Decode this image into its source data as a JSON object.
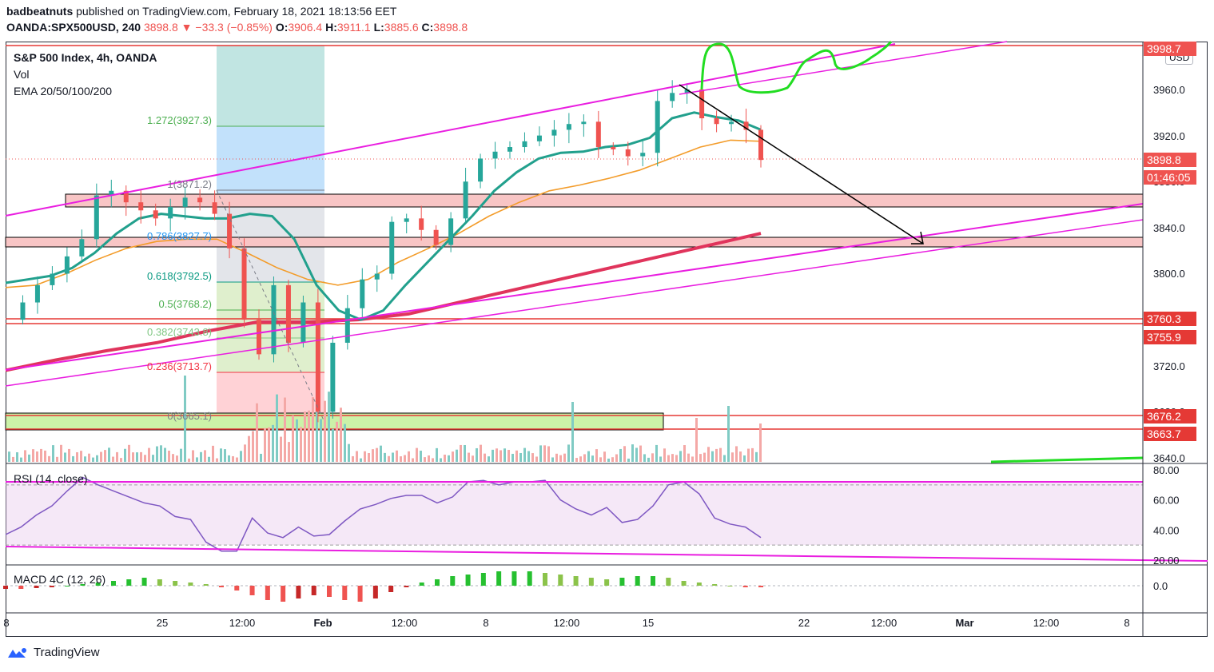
{
  "header": {
    "author": "badbeatnuts",
    "published_text": "published on TradingView.com, February 18, 2021 18:13:56 EET",
    "symbol": "OANDA:SPX500USD, 240",
    "last": "3898.8",
    "change": "−33.3 (−0.85%)",
    "open_label": "O:",
    "open": "3906.4",
    "high_label": "H:",
    "high": "3911.1",
    "low_label": "L:",
    "low": "3885.6",
    "close_label": "C:",
    "close": "3898.8"
  },
  "legend": {
    "title": "S&P 500 Index, 4h, OANDA",
    "vol": "Vol",
    "ema": "EMA 20/50/100/200",
    "rsi": "RSI (14, close)",
    "macd": "MACD 4C (12, 26)"
  },
  "currency": "USD",
  "price_labels": {
    "top": "3998.7",
    "last": "3898.8",
    "countdown": "01:46:05",
    "r1": "3760.3",
    "r2": "3755.9",
    "s1": "3676.2",
    "s2": "3663.7"
  },
  "fib_labels": [
    {
      "text": "1.272(3927.3)",
      "color": "#4caf50"
    },
    {
      "text": "1(3871.2)",
      "color": "#787b86"
    },
    {
      "text": "0.786(3827.7)",
      "color": "#2196f3"
    },
    {
      "text": "0.618(3792.5)",
      "color": "#089981"
    },
    {
      "text": "0.5(3768.2)",
      "color": "#4caf50"
    },
    {
      "text": "0.382(3743.8)",
      "color": "#81c784"
    },
    {
      "text": "0.236(3713.7)",
      "color": "#f23645"
    },
    {
      "text": "0(3665.1)",
      "color": "#787b86"
    }
  ],
  "footer": {
    "brand": "TradingView"
  },
  "colors": {
    "up": "#26a69a",
    "down": "#ef5350",
    "ema20": "#22a08d",
    "ema50": "#f39c2a",
    "ema200": "#e0345c",
    "channel": "#e91ee0",
    "arrow": "#000000",
    "green_sketch": "#22dd22"
  },
  "chart_data": {
    "type": "line",
    "title": "S&P 500 Index, 4h, OANDA",
    "x_ticks": [
      "8",
      "25",
      "12:00",
      "Feb",
      "12:00",
      "8",
      "12:00",
      "15",
      "22",
      "12:00",
      "Mar",
      "12:00",
      "8"
    ],
    "y_ticks": [
      3960.0,
      3920.0,
      3880.0,
      3840.0,
      3800.0,
      3720.0,
      3680.0,
      3640.0
    ],
    "ylim": [
      3632,
      3998
    ],
    "series": [
      {
        "name": "",
        "values": [
          3760,
          3775,
          3790,
          3800,
          3815,
          3830,
          3868,
          3872,
          3862,
          3855,
          3848,
          3858,
          3866,
          3862,
          3852,
          3822,
          3760,
          3730,
          3790,
          3740,
          3775,
          3680,
          3740,
          3770,
          3795,
          3800,
          3845,
          3848,
          3838,
          3825,
          3848,
          3880,
          3900,
          3906,
          3910,
          3915,
          3920,
          3925,
          3930,
          3932,
          3910,
          3908,
          3902,
          3905,
          3950,
          3957,
          3960,
          3935,
          3930,
          3932,
          3925,
          3898.8
        ]
      },
      {
        "name": "",
        "values": [
          3792,
          3795,
          3798,
          3805,
          3818,
          3835,
          3848,
          3852,
          3850,
          3848,
          3848,
          3852,
          3850,
          3830,
          3790,
          3768,
          3760,
          3768,
          3790,
          3810,
          3830,
          3850,
          3872,
          3888,
          3900,
          3905,
          3906,
          3910,
          3912,
          3918,
          3935,
          3940,
          3936,
          3933,
          3925
        ]
      },
      {
        "name": "",
        "values": [
          3788,
          3790,
          3800,
          3812,
          3822,
          3828,
          3830,
          3830,
          3818,
          3805,
          3795,
          3790,
          3795,
          3810,
          3822,
          3835,
          3850,
          3862,
          3872,
          3877,
          3883,
          3890,
          3900,
          3910,
          3916,
          3915
        ]
      },
      {
        "name": "",
        "values": [
          3716,
          3725,
          3733,
          3740,
          3750,
          3758,
          3758,
          3760,
          3765,
          3775,
          3785,
          3795,
          3805,
          3815,
          3825,
          3835
        ]
      }
    ],
    "rsi": {
      "ylim": [
        10,
        85
      ],
      "y_ticks": [
        80.0,
        60.0,
        40.0,
        20.0
      ],
      "values": [
        37,
        42,
        50,
        56,
        66,
        75,
        70,
        66,
        62,
        58,
        56,
        49,
        47,
        32,
        26,
        26,
        48,
        38,
        35,
        42,
        36,
        37,
        46,
        54,
        57,
        61,
        63,
        63,
        58,
        62,
        72,
        73,
        70,
        72,
        72,
        73,
        60,
        54,
        50,
        55,
        45,
        47,
        56,
        70,
        72,
        64,
        48,
        44,
        42,
        35
      ]
    },
    "macd": {
      "ylim": [
        -12,
        12
      ],
      "y_ticks": [
        0.0
      ],
      "values": [
        -2,
        -2,
        -1.5,
        -1,
        0,
        1,
        2,
        3,
        4,
        5,
        4,
        3,
        2,
        1,
        -1,
        -3,
        -6,
        -9,
        -10,
        -8,
        -6,
        -7,
        -9,
        -10,
        -8,
        -4,
        -1,
        2,
        4,
        6,
        7,
        8,
        9,
        9,
        9,
        8,
        7,
        6,
        5,
        4,
        5,
        6,
        6,
        5,
        3,
        2,
        1,
        0,
        -1,
        -1
      ]
    }
  }
}
